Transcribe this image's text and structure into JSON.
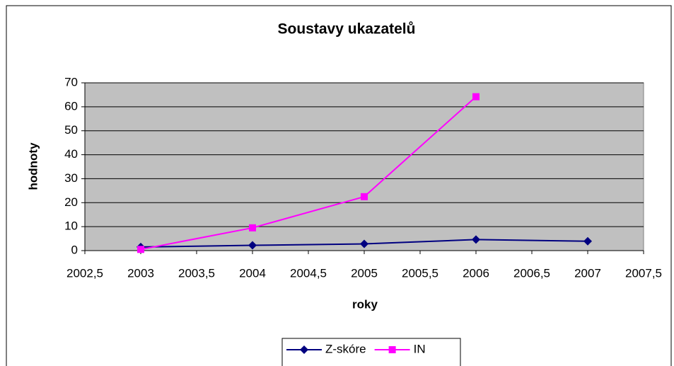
{
  "chart_data": {
    "type": "line",
    "title": "Soustavy ukazatelů",
    "x_label": "roky",
    "y_label": "hodnoty",
    "x": [
      2003,
      2004,
      2005,
      2006,
      2007
    ],
    "series": [
      {
        "name": "Z-skóre",
        "color": "#000080",
        "marker": "diamond",
        "values": [
          1.5,
          2.2,
          2.8,
          4.6,
          3.9
        ]
      },
      {
        "name": "IN",
        "color": "#ff00ff",
        "marker": "square",
        "values": [
          0.5,
          9.5,
          22.5,
          64.2,
          null
        ]
      }
    ],
    "xlim": [
      2002.5,
      2007.5
    ],
    "xticks": [
      {
        "value": 2002.5,
        "label": "2002,5"
      },
      2003,
      {
        "value": 2003.5,
        "label": "2003,5"
      },
      2004,
      {
        "value": 2004.5,
        "label": "2004,5"
      },
      2005,
      {
        "value": 2005.5,
        "label": "2005,5"
      },
      2006,
      {
        "value": 2006.5,
        "label": "2006,5"
      },
      2007,
      {
        "value": 2007.5,
        "label": "2007,5"
      }
    ],
    "ylim": [
      0,
      70
    ],
    "yticks": [
      0,
      10,
      20,
      30,
      40,
      50,
      60,
      70
    ],
    "grid": true,
    "legend": "bottom"
  }
}
